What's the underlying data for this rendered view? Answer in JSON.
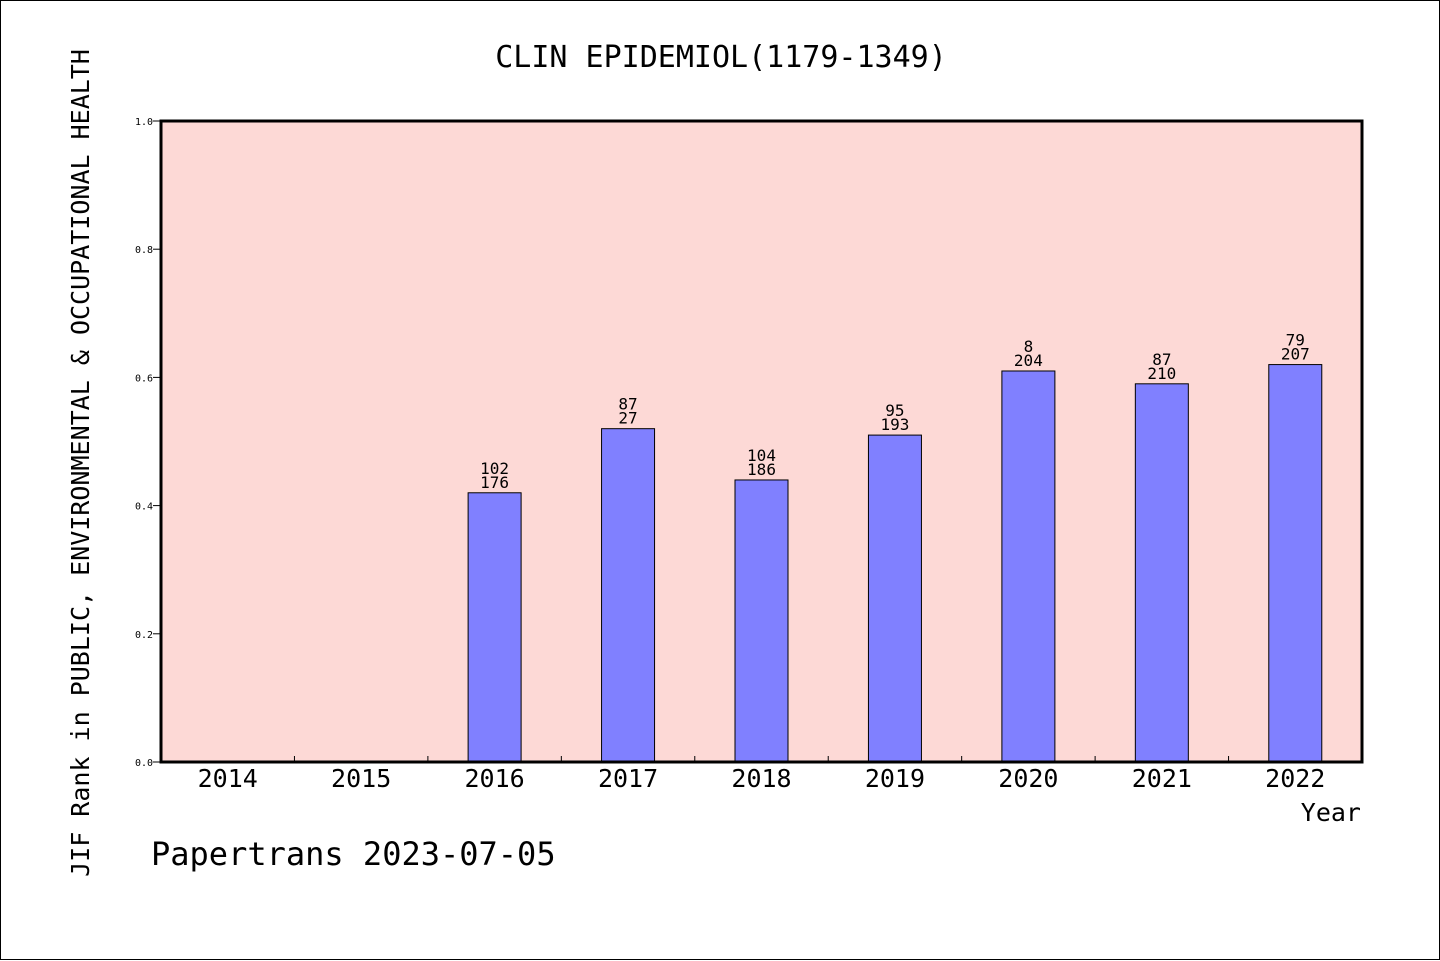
{
  "chart_data": {
    "type": "bar",
    "title": "CLIN EPIDEMIOL(1179-1349)",
    "xlabel": "Year",
    "ylabel": "JIF Rank in PUBLIC, ENVIRONMENTAL & OCCUPATIONAL HEALTH",
    "ylim": [
      0,
      1
    ],
    "yticks": [
      "0.0",
      "0.2",
      "0.4",
      "0.6",
      "0.8",
      "1.0"
    ],
    "categories": [
      "2014",
      "2015",
      "2016",
      "2017",
      "2018",
      "2019",
      "2020",
      "2021",
      "2022"
    ],
    "values": [
      null,
      null,
      0.42,
      0.52,
      0.44,
      0.51,
      0.61,
      0.59,
      0.62
    ],
    "label_top": [
      "",
      "",
      "102",
      "87",
      "104",
      "95",
      "8",
      "87",
      "79"
    ],
    "label_bottom": [
      "",
      "",
      "176",
      "27",
      "186",
      "193",
      "204",
      "210",
      "207"
    ],
    "grid": false,
    "colors": {
      "plot_bg": "#fdd9d6",
      "bar": "#8080ff"
    }
  },
  "footer": "Papertrans 2023-07-05"
}
